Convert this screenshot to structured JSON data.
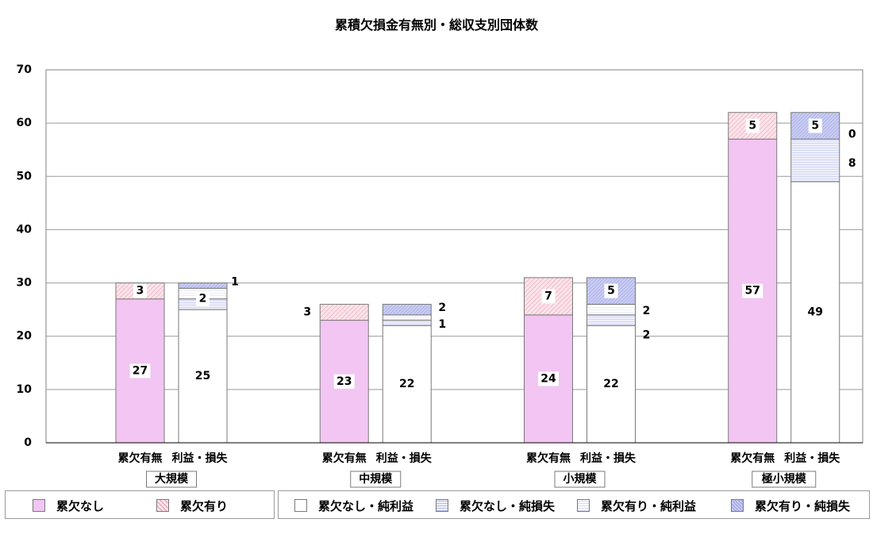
{
  "chart_data": {
    "type": "bar",
    "title": "累積欠損金有無別・総収支別団体数",
    "ylim": [
      0,
      70
    ],
    "y_ticks": [
      0,
      10,
      20,
      30,
      40,
      50,
      60,
      70
    ],
    "grid": true,
    "groups": [
      "大規模",
      "中規模",
      "小規模",
      "極小規模"
    ],
    "bar_labels": [
      "累欠有無",
      "利益・損失"
    ],
    "deficit_bars": [
      {
        "group": "大規模",
        "no_deficit": 27,
        "deficit": 3
      },
      {
        "group": "中規模",
        "no_deficit": 23,
        "deficit": 3
      },
      {
        "group": "小規模",
        "no_deficit": 24,
        "deficit": 7
      },
      {
        "group": "極小規模",
        "no_deficit": 57,
        "deficit": 5
      }
    ],
    "balance_bars": [
      {
        "group": "大規模",
        "no_deficit_profit": 25,
        "no_deficit_loss": 2,
        "deficit_profit": 2,
        "deficit_loss": 1
      },
      {
        "group": "中規模",
        "no_deficit_profit": 22,
        "no_deficit_loss": 1,
        "deficit_profit": 1,
        "deficit_loss": 2
      },
      {
        "group": "小規模",
        "no_deficit_profit": 22,
        "no_deficit_loss": 2,
        "deficit_profit": 2,
        "deficit_loss": 5
      },
      {
        "group": "極小規模",
        "no_deficit_profit": 49,
        "no_deficit_loss": 8,
        "deficit_profit": 0,
        "deficit_loss": 5
      }
    ],
    "legend_left": [
      "累欠なし",
      "累欠有り"
    ],
    "legend_right": [
      "累欠なし・純利益",
      "累欠なし・純損失",
      "累欠有り・純利益",
      "累欠有り・純損失"
    ],
    "colors": {
      "no_deficit": "#f2c5f2",
      "deficit": "#fbe3ea",
      "no_deficit_profit": "#ffffff",
      "no_deficit_loss": "#eef0fb",
      "deficit_profit": "#ffffff",
      "deficit_loss": "#c9ccf2"
    }
  }
}
